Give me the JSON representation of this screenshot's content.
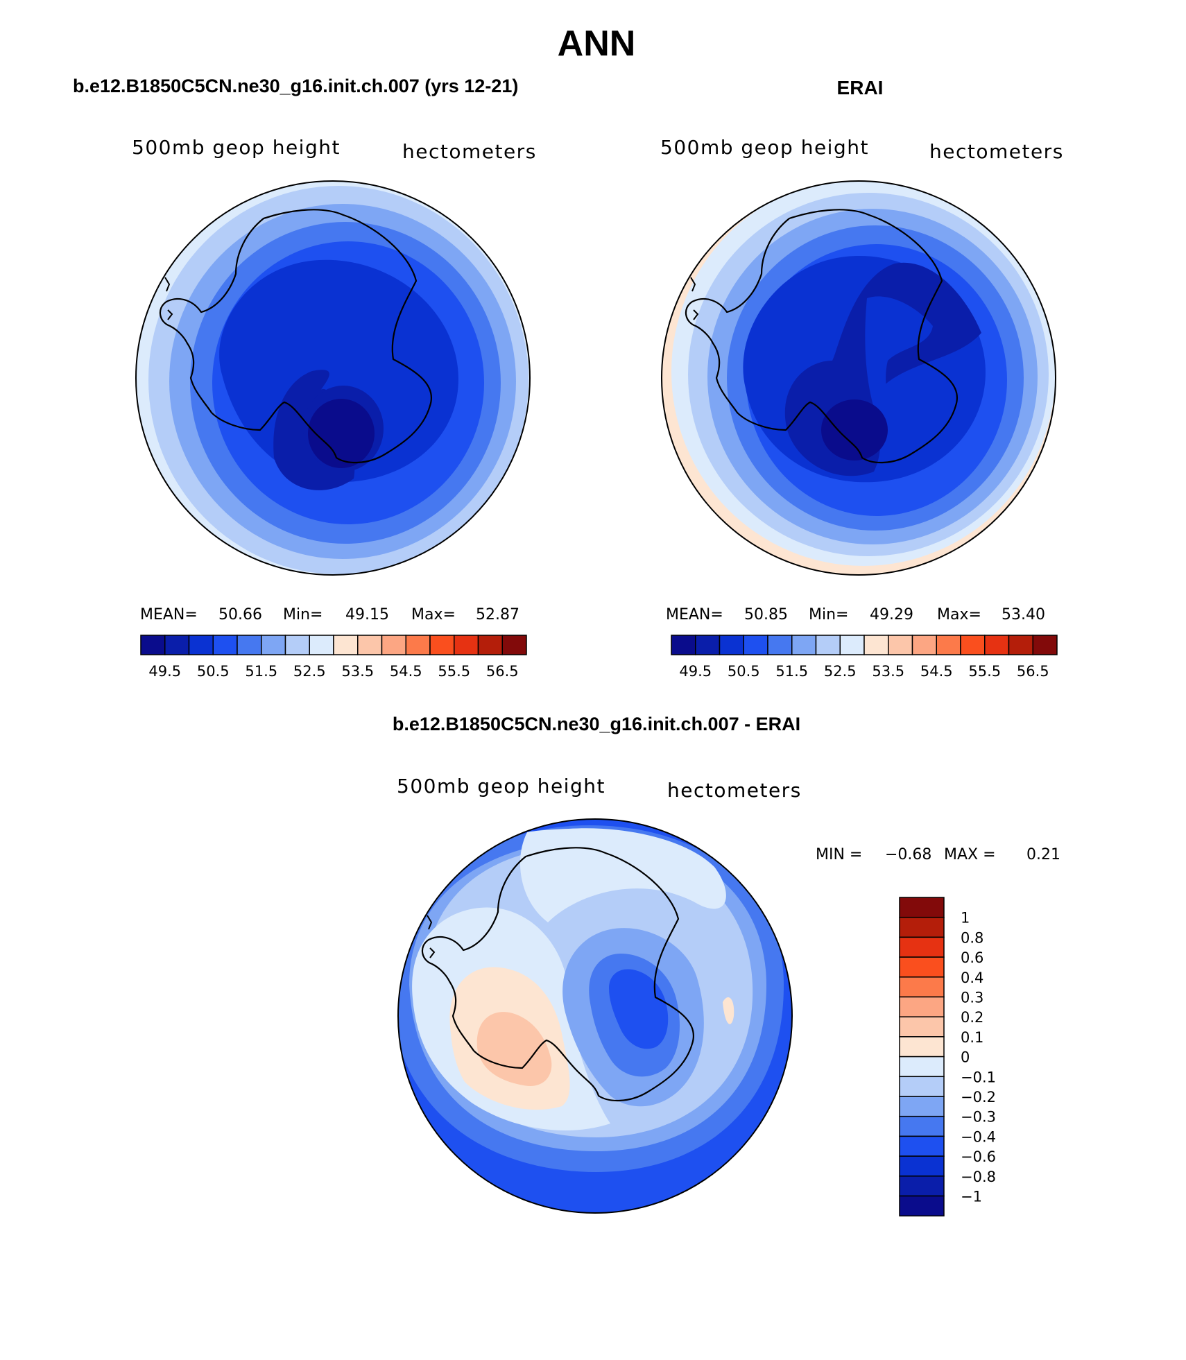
{
  "page": {
    "season": "ANN"
  },
  "panels": [
    {
      "case_title": "b.e12.B1850C5CN.ne30_g16.init.ch.007 (yrs 12-21)",
      "variable": "500mb geop height",
      "units": "hectometers",
      "stats": {
        "mean_label": "MEAN=",
        "mean": "50.66",
        "min_label": "Min=",
        "min": "49.15",
        "max_label": "Max=",
        "max": "52.87"
      },
      "colorbar_labels": [
        "49.5",
        "50.5",
        "51.5",
        "52.5",
        "53.5",
        "54.5",
        "55.5",
        "56.5"
      ]
    },
    {
      "case_title": "ERAI",
      "variable": "500mb geop height",
      "units": "hectometers",
      "stats": {
        "mean_label": "MEAN=",
        "mean": "50.85",
        "min_label": "Min=",
        "min": "49.29",
        "max_label": "Max=",
        "max": "53.40"
      },
      "colorbar_labels": [
        "49.5",
        "50.5",
        "51.5",
        "52.5",
        "53.5",
        "54.5",
        "55.5",
        "56.5"
      ]
    }
  ],
  "diff_panel": {
    "case_title": "b.e12.B1850C5CN.ne30_g16.init.ch.007 - ERAI",
    "variable": "500mb geop height",
    "units": "hectometers",
    "stats": {
      "min_label": "MIN =",
      "min": "−0.68",
      "max_label": "MAX =",
      "max": "0.21"
    },
    "colorbar_labels": [
      "1",
      "0.8",
      "0.6",
      "0.4",
      "0.3",
      "0.2",
      "0.1",
      "0",
      "−0.1",
      "−0.2",
      "−0.3",
      "−0.4",
      "−0.6",
      "−0.8",
      "−1"
    ]
  },
  "colors": {
    "abs_scale": [
      "#0a0c8c",
      "#0a1eaa",
      "#0a32d2",
      "#1e50f0",
      "#4678f0",
      "#7ea6f4",
      "#b4cdf8",
      "#dcebfc",
      "#fde5d2",
      "#fcc6aa",
      "#fca683",
      "#fc7a4a",
      "#fa4f1e",
      "#e63212",
      "#b41e0a",
      "#820a0a"
    ],
    "diff_scale": [
      "#820a0a",
      "#b41e0a",
      "#e63212",
      "#fa4f1e",
      "#fc7a4a",
      "#fca683",
      "#fcc6aa",
      "#fde5d2",
      "#dcebfc",
      "#b4cdf8",
      "#7ea6f4",
      "#4678f0",
      "#1e50f0",
      "#0a32d2",
      "#0a1eaa",
      "#0a0c8c"
    ]
  }
}
